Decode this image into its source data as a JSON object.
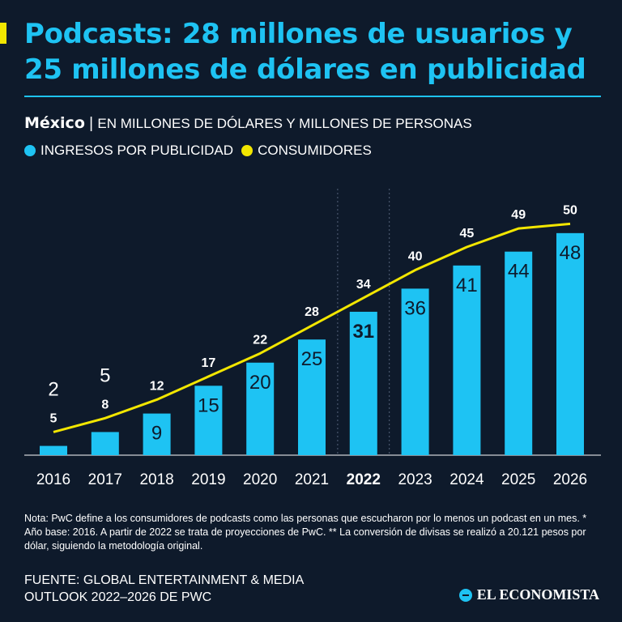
{
  "header": {
    "title": "Podcasts: 28 millones de usuarios y 25 millones de dólares en publicidad",
    "country": "México",
    "separator": "|",
    "units": "EN MILLONES DE DÓLARES Y MILLONES DE PERSONAS"
  },
  "legend": {
    "ads": "INGRESOS POR PUBLICIDAD",
    "consumers": "CONSUMIDORES"
  },
  "colors": {
    "ads": "#1ec3f3",
    "consumers": "#f2e600",
    "background": "#0e1a2b",
    "text": "#ffffff"
  },
  "chart_data": {
    "type": "bar",
    "title": "Podcasts: 28 millones de usuarios y 25 millones de dólares en publicidad",
    "xlabel": "",
    "ylabel": "",
    "categories": [
      "2016",
      "2017",
      "2018",
      "2019",
      "2020",
      "2021",
      "2022",
      "2023",
      "2024",
      "2025",
      "2026"
    ],
    "highlight_category": "2022",
    "ylim": [
      0,
      52
    ],
    "series": [
      {
        "name": "INGRESOS POR PUBLICIDAD",
        "type": "bar",
        "values": [
          2,
          5,
          9,
          15,
          20,
          25,
          31,
          36,
          41,
          44,
          48
        ],
        "labels": [
          "2",
          "5",
          "9",
          "15",
          "20",
          "25",
          "31",
          "36",
          "41",
          "44",
          "48"
        ]
      },
      {
        "name": "CONSUMIDORES",
        "type": "line",
        "values": [
          5,
          8,
          12,
          17,
          22,
          28,
          34,
          40,
          45,
          49,
          50
        ],
        "labels": [
          "5",
          "8",
          "12",
          "17",
          "22",
          "28",
          "34",
          "40",
          "45",
          "49",
          "50"
        ]
      }
    ],
    "projection_divider_after": "2022"
  },
  "note": "Nota: PwC define a los consumidores de podcasts como las personas que escucharon por lo menos un podcast en un mes. * Año base: 2016. A partir de 2022 se trata de proyecciones de PwC. ** La conversión de divisas se realizó a 20.121 pesos por dólar, siguiendo la metodología original.",
  "source": "FUENTE: GLOBAL ENTERTAINMENT & MEDIA OUTLOOK 2022–2026 DE PWC",
  "brand": "EL ECONOMISTA"
}
